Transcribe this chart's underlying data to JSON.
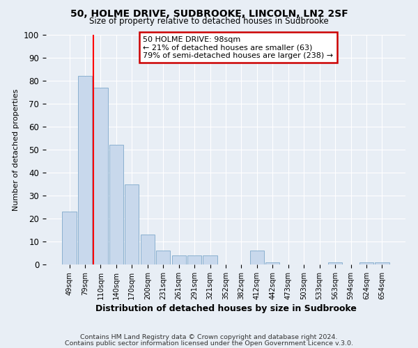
{
  "title1": "50, HOLME DRIVE, SUDBROOKE, LINCOLN, LN2 2SF",
  "title2": "Size of property relative to detached houses in Sudbrooke",
  "xlabel": "Distribution of detached houses by size in Sudbrooke",
  "ylabel": "Number of detached properties",
  "categories": [
    "49sqm",
    "79sqm",
    "110sqm",
    "140sqm",
    "170sqm",
    "200sqm",
    "231sqm",
    "261sqm",
    "291sqm",
    "321sqm",
    "352sqm",
    "382sqm",
    "412sqm",
    "442sqm",
    "473sqm",
    "503sqm",
    "533sqm",
    "563sqm",
    "594sqm",
    "624sqm",
    "654sqm"
  ],
  "values": [
    23,
    82,
    77,
    52,
    35,
    13,
    6,
    4,
    4,
    4,
    0,
    0,
    6,
    1,
    0,
    0,
    0,
    1,
    0,
    1,
    1
  ],
  "bar_color": "#c8d8ec",
  "bar_edge_color": "#8ab0d0",
  "red_line_x": 1.55,
  "annotation_title": "50 HOLME DRIVE: 98sqm",
  "annotation_line1": "← 21% of detached houses are smaller (63)",
  "annotation_line2": "79% of semi-detached houses are larger (238) →",
  "annotation_box_facecolor": "#ffffff",
  "annotation_box_edgecolor": "#cc0000",
  "footer1": "Contains HM Land Registry data © Crown copyright and database right 2024.",
  "footer2": "Contains public sector information licensed under the Open Government Licence v.3.0.",
  "ylim": [
    0,
    100
  ],
  "yticks": [
    0,
    10,
    20,
    30,
    40,
    50,
    60,
    70,
    80,
    90,
    100
  ],
  "background_color": "#e8eef5",
  "grid_color": "#ffffff"
}
